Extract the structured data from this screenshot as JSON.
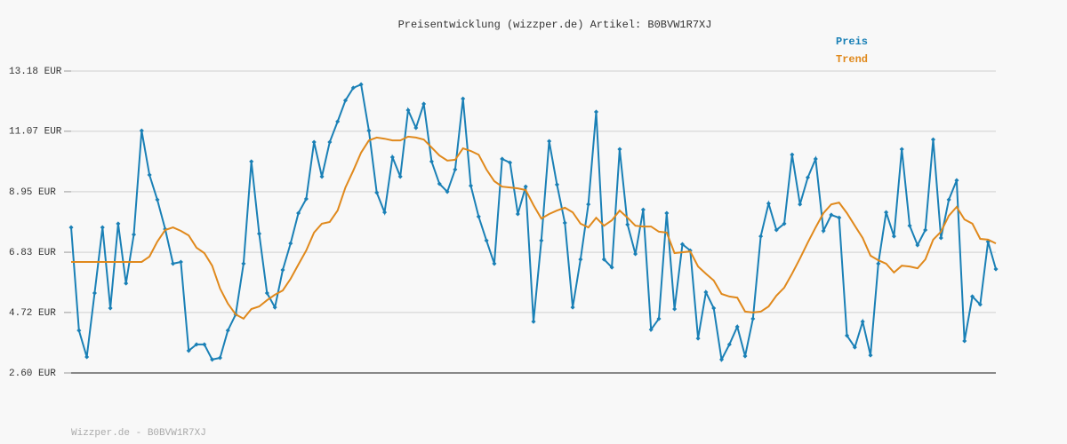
{
  "chart_data": {
    "type": "line",
    "title": "Preisentwicklung (wizzper.de) Artikel: B0BVW1R7XJ",
    "footer": "Wizzper.de - B0BVW1R7XJ",
    "ylim": [
      2.6,
      13.18
    ],
    "yticks": [
      {
        "value": 2.6,
        "label": "2.60 EUR"
      },
      {
        "value": 4.72,
        "label": "4.72 EUR"
      },
      {
        "value": 6.83,
        "label": "6.83 EUR"
      },
      {
        "value": 8.95,
        "label": "8.95 EUR"
      },
      {
        "value": 11.07,
        "label": "11.07 EUR"
      },
      {
        "value": 13.18,
        "label": "13.18 EUR"
      }
    ],
    "grid": true,
    "legend": "top-right",
    "series": [
      {
        "name": "Preis",
        "color": "#1a80b6",
        "markers": true,
        "values": [
          7.7,
          4.09,
          3.16,
          5.4,
          7.7,
          4.87,
          7.83,
          5.74,
          7.45,
          11.09,
          9.54,
          8.67,
          7.64,
          6.43,
          6.49,
          3.38,
          3.6,
          3.6,
          3.07,
          3.13,
          4.09,
          4.65,
          6.43,
          10.01,
          7.48,
          5.4,
          4.9,
          6.21,
          7.14,
          8.2,
          8.7,
          10.69,
          9.48,
          10.69,
          11.41,
          12.15,
          12.59,
          12.71,
          11.09,
          8.92,
          8.23,
          10.16,
          9.48,
          11.81,
          11.19,
          12.03,
          10.01,
          9.23,
          8.95,
          9.73,
          12.21,
          9.16,
          8.08,
          7.24,
          6.43,
          10.1,
          9.97,
          8.17,
          9.13,
          4.4,
          7.24,
          10.72,
          9.2,
          7.86,
          4.9,
          6.58,
          8.51,
          11.75,
          6.58,
          6.3,
          10.44,
          7.8,
          6.77,
          8.32,
          4.12,
          4.5,
          8.2,
          4.84,
          7.11,
          6.89,
          3.81,
          5.43,
          4.87,
          3.07,
          3.6,
          4.22,
          3.19,
          4.5,
          7.39,
          8.54,
          7.61,
          7.83,
          10.25,
          8.51,
          9.45,
          10.1,
          7.58,
          8.14,
          8.04,
          3.91,
          3.5,
          4.4,
          3.22,
          6.43,
          8.23,
          7.39,
          10.44,
          7.76,
          7.08,
          7.61,
          10.78,
          7.33,
          8.67,
          9.35,
          3.72,
          5.28,
          5.0,
          7.2,
          6.24
        ]
      },
      {
        "name": "Trend",
        "color": "#e0891c",
        "markers": false,
        "values": [
          6.49,
          6.49,
          6.49,
          6.49,
          6.49,
          6.49,
          6.49,
          6.49,
          6.49,
          6.49,
          6.68,
          7.2,
          7.61,
          7.7,
          7.58,
          7.42,
          6.99,
          6.8,
          6.36,
          5.56,
          5.03,
          4.65,
          4.5,
          4.84,
          4.93,
          5.15,
          5.34,
          5.49,
          5.9,
          6.4,
          6.89,
          7.52,
          7.83,
          7.89,
          8.29,
          9.1,
          9.69,
          10.32,
          10.75,
          10.85,
          10.81,
          10.75,
          10.75,
          10.88,
          10.85,
          10.78,
          10.5,
          10.22,
          10.04,
          10.07,
          10.47,
          10.38,
          10.25,
          9.73,
          9.32,
          9.13,
          9.1,
          9.07,
          9.01,
          8.48,
          8.01,
          8.17,
          8.29,
          8.39,
          8.23,
          7.83,
          7.7,
          8.04,
          7.76,
          7.95,
          8.29,
          8.04,
          7.76,
          7.73,
          7.73,
          7.55,
          7.52,
          6.8,
          6.83,
          6.86,
          6.33,
          6.08,
          5.84,
          5.37,
          5.28,
          5.24,
          4.75,
          4.72,
          4.75,
          4.93,
          5.31,
          5.59,
          6.08,
          6.61,
          7.17,
          7.7,
          8.2,
          8.51,
          8.57,
          8.2,
          7.76,
          7.33,
          6.71,
          6.55,
          6.43,
          6.12,
          6.36,
          6.33,
          6.27,
          6.58,
          7.27,
          7.55,
          8.11,
          8.42,
          7.98,
          7.83,
          7.3,
          7.27,
          7.14
        ]
      }
    ]
  }
}
